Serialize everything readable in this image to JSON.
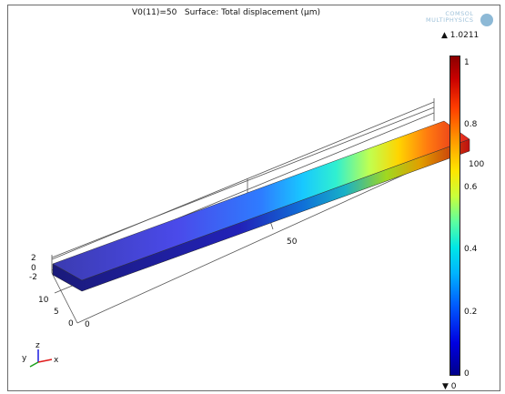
{
  "plot": {
    "title": "V0(11)=50   Surface: Total displacement (µm)"
  },
  "logo": {
    "line1": "COMSOL",
    "line2": "MULTIPHYSICS"
  },
  "colorbar": {
    "max_label": "▲ 1.0211",
    "min_label": "▼ 0",
    "ticks": [
      "1",
      "0.8",
      "0.6",
      "0.4",
      "0.2",
      "0"
    ],
    "range": [
      0,
      1.0211
    ],
    "colors": {
      "low": "#00008b",
      "mid": "#5cffa0",
      "high": "#8b0000"
    }
  },
  "axes": {
    "z_ticks": [
      "2",
      "0",
      "-2"
    ],
    "y_ticks": [
      "10",
      "5",
      "0"
    ],
    "x_ticks": [
      "0",
      "50",
      "100"
    ],
    "triad": {
      "x": "x",
      "y": "y",
      "z": "z"
    }
  }
}
